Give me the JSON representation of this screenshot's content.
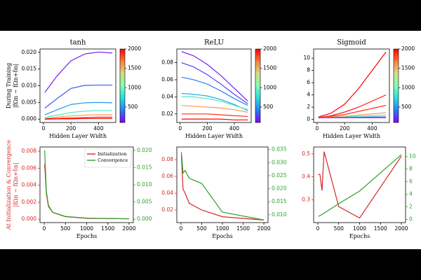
{
  "chart_data": [
    {
      "type": "line",
      "title": "tanh",
      "xlabel": "Hidden Layer Width",
      "ylabel": [
        "During Training",
        "|fΩn − fΩn+δn|"
      ],
      "x": [
        10,
        100,
        200,
        300,
        400,
        500
      ],
      "xlim": [
        -25,
        525
      ],
      "xticks": [
        0,
        200,
        400
      ],
      "ylim": [
        -0.001,
        0.021
      ],
      "yticks": [
        {
          "value": 0,
          "label": "0.000"
        },
        {
          "value": 0.005,
          "label": "0.005"
        },
        {
          "value": 0.01,
          "label": "0.010"
        },
        {
          "value": 0.015,
          "label": "0.015"
        },
        {
          "value": 0.02,
          "label": "0.020"
        }
      ],
      "colorbar": {
        "clim": [
          100,
          2000
        ],
        "ticks": [
          500,
          1000,
          1500,
          2000
        ],
        "colormap": "rainbow"
      },
      "series": [
        {
          "color": "#7a1cf5",
          "values": [
            0.008,
            0.013,
            0.0175,
            0.0195,
            0.0201,
            0.0198
          ]
        },
        {
          "color": "#3a5cf2",
          "values": [
            0.0033,
            0.0062,
            0.0092,
            0.0101,
            0.0102,
            0.0102
          ]
        },
        {
          "color": "#1f9ae8",
          "values": [
            0.0013,
            0.0028,
            0.0044,
            0.0049,
            0.005,
            0.0049
          ]
        },
        {
          "color": "#4de8c8",
          "values": [
            0.0005,
            0.0012,
            0.002,
            0.0024,
            0.0026,
            0.0026
          ]
        },
        {
          "color": "#ff9a50",
          "values": [
            0.0002,
            0.0006,
            0.001,
            0.0012,
            0.0013,
            0.0013
          ]
        },
        {
          "color": "#ff3018",
          "values": [
            0.0001,
            0.0002,
            0.0004,
            0.0005,
            0.0006,
            0.0006
          ]
        },
        {
          "color": "#ff0000",
          "values": [
            0,
            0.0001,
            0.0001,
            0.0002,
            0.0002,
            0.0002
          ]
        }
      ]
    },
    {
      "type": "line",
      "title": "ReLU",
      "xlabel": "Hidden Layer Width",
      "x": [
        10,
        100,
        200,
        300,
        400,
        500
      ],
      "xlim": [
        -25,
        525
      ],
      "xticks": [
        0,
        200,
        400
      ],
      "ylim": [
        0.01,
        0.096
      ],
      "yticks": [
        0.02,
        0.04,
        0.06,
        0.08
      ],
      "colorbar": {
        "clim": [
          100,
          2000
        ],
        "ticks": [
          500,
          1000,
          1500,
          2000
        ],
        "colormap": "rainbow"
      },
      "series": [
        {
          "color": "#7a1cf5",
          "values": [
            0.093,
            0.088,
            0.078,
            0.065,
            0.05,
            0.035
          ]
        },
        {
          "color": "#4a44f4",
          "values": [
            0.08,
            0.075,
            0.066,
            0.055,
            0.043,
            0.032
          ]
        },
        {
          "color": "#2c7ef7",
          "values": [
            0.063,
            0.06,
            0.055,
            0.047,
            0.038,
            0.03
          ]
        },
        {
          "color": "#1fb0e0",
          "values": [
            0.044,
            0.043,
            0.041,
            0.037,
            0.031,
            0.024
          ]
        },
        {
          "color": "#4de8c8",
          "values": [
            0.04,
            0.04,
            0.038,
            0.035,
            0.03,
            0.025
          ]
        },
        {
          "color": "#ff9a50",
          "values": [
            0.03,
            0.029,
            0.028,
            0.027,
            0.025,
            0.022
          ]
        },
        {
          "color": "#ff3018",
          "values": [
            0.02,
            0.02,
            0.02,
            0.019,
            0.018,
            0.017
          ]
        },
        {
          "color": "#ff0000",
          "values": [
            0.014,
            0.014,
            0.014,
            0.014,
            0.013,
            0.013
          ]
        }
      ]
    },
    {
      "type": "line",
      "title": "Sigmoid",
      "xlabel": "Hidden Layer Width",
      "x": [
        10,
        100,
        200,
        300,
        400,
        500
      ],
      "xlim": [
        -25,
        525
      ],
      "xticks": [
        0,
        200,
        400
      ],
      "ylim": [
        -0.5,
        11.5
      ],
      "yticks": [
        0,
        2,
        4,
        6,
        8,
        10
      ],
      "colorbar": {
        "clim": [
          100,
          2000
        ],
        "ticks": [
          500,
          1000,
          1500,
          2000
        ],
        "colormap": "rainbow"
      },
      "series": [
        {
          "color": "#ff0000",
          "values": [
            0.4,
            1.0,
            2.5,
            5.0,
            8.0,
            11.0
          ]
        },
        {
          "color": "#ff1a10",
          "values": [
            0.3,
            0.6,
            1.2,
            2.0,
            3.0,
            4.0
          ]
        },
        {
          "color": "#ff3018",
          "values": [
            0.3,
            0.5,
            0.8,
            1.3,
            1.8,
            2.3
          ]
        },
        {
          "color": "#ff9a50",
          "values": [
            0.3,
            0.4,
            0.5,
            0.7,
            0.9,
            1.1
          ]
        },
        {
          "color": "#4de8c8",
          "values": [
            0.3,
            0.35,
            0.4,
            0.5,
            0.6,
            0.7
          ]
        },
        {
          "color": "#2c7ef7",
          "values": [
            0.3,
            0.3,
            0.3,
            0.35,
            0.4,
            0.4
          ]
        },
        {
          "color": "#7a1cf5",
          "values": [
            0.3,
            0.3,
            0.3,
            0.3,
            0.3,
            0.3
          ]
        }
      ]
    },
    {
      "type": "line",
      "xlabel": "Epochs",
      "ylabel": [
        "At Initialization & Convergence",
        "|fΩn − fΩn+δn|"
      ],
      "ylabel_color": "#d62728",
      "x": [
        10,
        50,
        100,
        200,
        500,
        1000,
        2000
      ],
      "xlim": [
        -100,
        2100
      ],
      "xticks": [
        0,
        500,
        1000,
        1500,
        2000
      ],
      "ylim": [
        -0.0004,
        0.0085
      ],
      "yticks": [
        {
          "value": 0,
          "label": "0.000"
        },
        {
          "value": 0.002,
          "label": "0.002"
        },
        {
          "value": 0.004,
          "label": "0.004"
        },
        {
          "value": 0.006,
          "label": "0.006"
        },
        {
          "value": 0.008,
          "label": "0.008"
        }
      ],
      "y2lim": [
        -0.001,
        0.021
      ],
      "y2ticks": [
        {
          "value": 0,
          "label": "0.000"
        },
        {
          "value": 0.005,
          "label": "0.005"
        },
        {
          "value": 0.01,
          "label": "0.010"
        },
        {
          "value": 0.015,
          "label": "0.015"
        },
        {
          "value": 0.02,
          "label": "0.020"
        }
      ],
      "legend": "upper right",
      "series": [
        {
          "name": "Initialization",
          "color": "#d62728",
          "values": [
            0.0065,
            0.003,
            0.0015,
            0.0008,
            0.0003,
            0.0001,
            5e-05
          ]
        },
        {
          "name": "Convergence",
          "color": "#2ca02c",
          "axis": "y2",
          "values": [
            0.02,
            0.008,
            0.004,
            0.002,
            0.0008,
            0.0003,
            0.0001
          ]
        }
      ]
    },
    {
      "type": "line",
      "xlabel": "Epochs",
      "x": [
        10,
        50,
        100,
        200,
        500,
        1000,
        2000
      ],
      "xlim": [
        -100,
        2100
      ],
      "xticks": [
        0,
        500,
        1000,
        1500,
        2000
      ],
      "ylim": [
        0.005,
        0.095
      ],
      "yticks": [
        0.02,
        0.04,
        0.06,
        0.08
      ],
      "y2lim": [
        0.007,
        0.036
      ],
      "y2ticks": [
        {
          "value": 0.01,
          "label": "0.010"
        },
        0.015,
        {
          "value": 0.02,
          "label": "0.020"
        },
        0.025,
        {
          "value": 0.03,
          "label": "0.030"
        },
        0.035
      ],
      "series": [
        {
          "color": "#d62728",
          "values": [
            0.085,
            0.045,
            0.04,
            0.028,
            0.02,
            0.012,
            0.008
          ]
        },
        {
          "color": "#2ca02c",
          "axis": "y2",
          "values": [
            0.034,
            0.026,
            0.027,
            0.024,
            0.022,
            0.011,
            0.008
          ]
        }
      ]
    },
    {
      "type": "line",
      "xlabel": "Epochs",
      "x": [
        10,
        50,
        100,
        150,
        500,
        1000,
        2000
      ],
      "xlim": [
        -100,
        2100
      ],
      "xticks": [
        0,
        500,
        1000,
        1500,
        2000
      ],
      "ylim": [
        0.2,
        0.53
      ],
      "yticks": [
        0.3,
        0.4,
        0.5
      ],
      "y2lim": [
        -0.5,
        11.5
      ],
      "y2ticks": [
        0,
        2,
        4,
        6,
        8,
        10
      ],
      "series": [
        {
          "color": "#d62728",
          "values": [
            0.41,
            0.41,
            0.34,
            0.51,
            0.27,
            0.22,
            0.49
          ]
        },
        {
          "color": "#2ca02c",
          "axis": "y2",
          "values": [
            0.5,
            0.6,
            0.8,
            1.0,
            2.5,
            4.5,
            10.3
          ]
        }
      ]
    }
  ]
}
